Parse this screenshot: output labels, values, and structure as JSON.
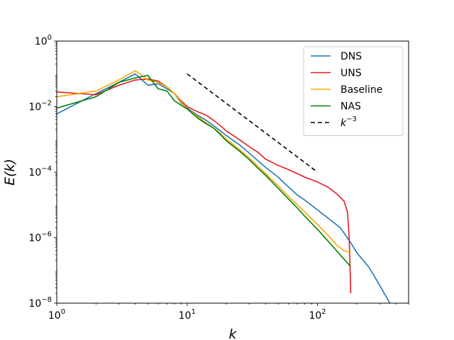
{
  "chart_data": {
    "type": "line",
    "xscale": "log",
    "yscale": "log",
    "xlim": [
      1,
      500
    ],
    "ylim": [
      1e-08,
      1
    ],
    "xlabel": "k",
    "ylabel": "E(k)",
    "legend_position": "top-right",
    "grid": false,
    "x_ticks": [
      {
        "value": 1,
        "base": "10",
        "exp": "0"
      },
      {
        "value": 10,
        "base": "10",
        "exp": "1"
      },
      {
        "value": 100,
        "base": "10",
        "exp": "2"
      }
    ],
    "y_ticks": [
      {
        "value": 1e-08,
        "base": "10",
        "exp": "−8"
      },
      {
        "value": 1e-06,
        "base": "10",
        "exp": "−6"
      },
      {
        "value": 0.0001,
        "base": "10",
        "exp": "−4"
      },
      {
        "value": 0.01,
        "base": "10",
        "exp": "−2"
      },
      {
        "value": 1,
        "base": "10",
        "exp": "0"
      }
    ],
    "series": [
      {
        "name": "DNS",
        "color": "#1f77b4",
        "style": "solid",
        "x": [
          1,
          2,
          3,
          4,
          5,
          6,
          7,
          8,
          9,
          10,
          12,
          14,
          16,
          18,
          20,
          25,
          30,
          35,
          40,
          50,
          60,
          70,
          80,
          100,
          120,
          150,
          180,
          200,
          250,
          300,
          350,
          370
        ],
        "y": [
          0.006,
          0.025,
          0.055,
          0.1,
          0.045,
          0.05,
          0.035,
          0.025,
          0.013,
          0.009,
          0.0055,
          0.0038,
          0.0026,
          0.0018,
          0.0013,
          0.0007,
          0.00038,
          0.00022,
          0.00014,
          7e-05,
          3.5e-05,
          2e-05,
          1.4e-05,
          7e-06,
          4e-06,
          2e-06,
          7e-07,
          3.5e-07,
          1.2e-07,
          3.5e-08,
          1.2e-08,
          8e-09
        ]
      },
      {
        "name": "UNS",
        "color": "#e41a1c",
        "style": "solid",
        "x": [
          1,
          2,
          3,
          4,
          5,
          6,
          7,
          8,
          9,
          10,
          12,
          14,
          16,
          18,
          20,
          25,
          30,
          35,
          40,
          50,
          60,
          70,
          80,
          100,
          120,
          140,
          160,
          170,
          175,
          178,
          180
        ],
        "y": [
          0.028,
          0.023,
          0.045,
          0.065,
          0.07,
          0.06,
          0.04,
          0.025,
          0.015,
          0.01,
          0.007,
          0.0055,
          0.0038,
          0.0026,
          0.0018,
          0.001,
          0.0006,
          0.0004,
          0.00025,
          0.00016,
          0.00012,
          9e-05,
          7e-05,
          5e-05,
          3.5e-05,
          2.2e-05,
          1.3e-05,
          6e-06,
          1e-06,
          1e-07,
          2e-08
        ]
      },
      {
        "name": "Baseline",
        "color": "#ffa500",
        "style": "solid",
        "x": [
          1,
          2,
          3,
          4,
          5,
          6,
          7,
          8,
          9,
          10,
          12,
          14,
          16,
          18,
          20,
          25,
          30,
          35,
          40,
          50,
          60,
          70,
          80,
          100,
          120,
          140,
          160,
          180
        ],
        "y": [
          0.02,
          0.03,
          0.065,
          0.125,
          0.065,
          0.055,
          0.04,
          0.025,
          0.014,
          0.0085,
          0.005,
          0.0032,
          0.0022,
          0.0015,
          0.001,
          0.0005,
          0.00027,
          0.00015,
          9e-05,
          3.8e-05,
          1.8e-05,
          1e-05,
          6e-06,
          2.5e-06,
          1.2e-06,
          6e-07,
          4e-07,
          3.5e-07
        ]
      },
      {
        "name": "NAS",
        "color": "#008000",
        "style": "solid",
        "x": [
          1,
          2,
          3,
          4,
          5,
          6,
          7,
          8,
          9,
          10,
          12,
          14,
          16,
          18,
          20,
          25,
          30,
          35,
          40,
          50,
          60,
          70,
          80,
          100,
          120,
          140,
          160,
          180
        ],
        "y": [
          0.009,
          0.02,
          0.055,
          0.075,
          0.09,
          0.035,
          0.03,
          0.015,
          0.011,
          0.0085,
          0.0045,
          0.003,
          0.0022,
          0.0014,
          0.0009,
          0.00045,
          0.00024,
          0.00013,
          8e-05,
          3.2e-05,
          1.5e-05,
          8e-06,
          4.5e-06,
          1.8e-06,
          8e-07,
          4e-07,
          2.2e-07,
          1.3e-07
        ]
      },
      {
        "name": "k−3",
        "label_base": "k",
        "label_exp": "−3",
        "color": "#000000",
        "style": "dashed",
        "x": [
          10,
          100
        ],
        "y": [
          0.1,
          0.0001
        ]
      }
    ]
  }
}
